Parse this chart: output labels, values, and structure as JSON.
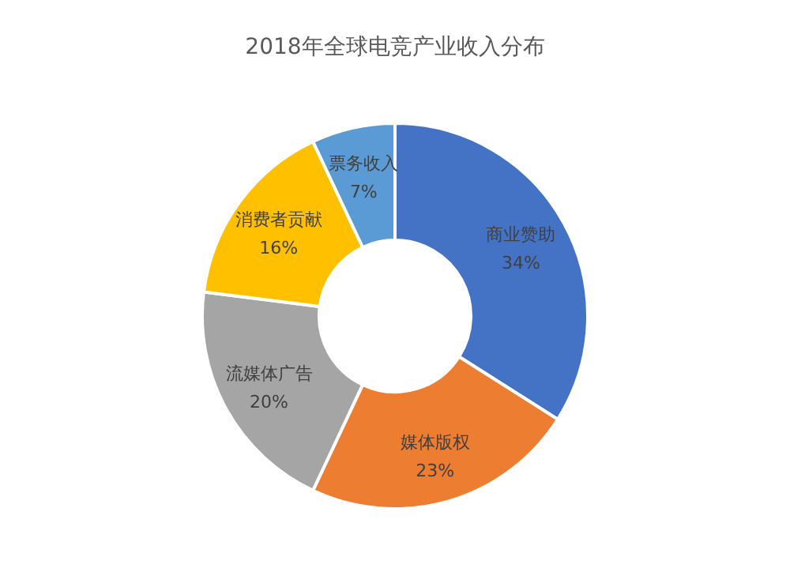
{
  "chart_data": {
    "type": "donut",
    "title": "2018年全球电竞产业收入分布",
    "categories": [
      "商业赞助",
      "媒体版权",
      "流媒体广告",
      "消费者贡献",
      "票务收入"
    ],
    "values": [
      34,
      23,
      20,
      16,
      7
    ],
    "colors": [
      "#4472c4",
      "#ed7d31",
      "#a5a5a5",
      "#ffc000",
      "#5b9bd5"
    ],
    "value_labels": [
      "34%",
      "23%",
      "20%",
      "16%",
      "7%"
    ],
    "legend": false
  }
}
